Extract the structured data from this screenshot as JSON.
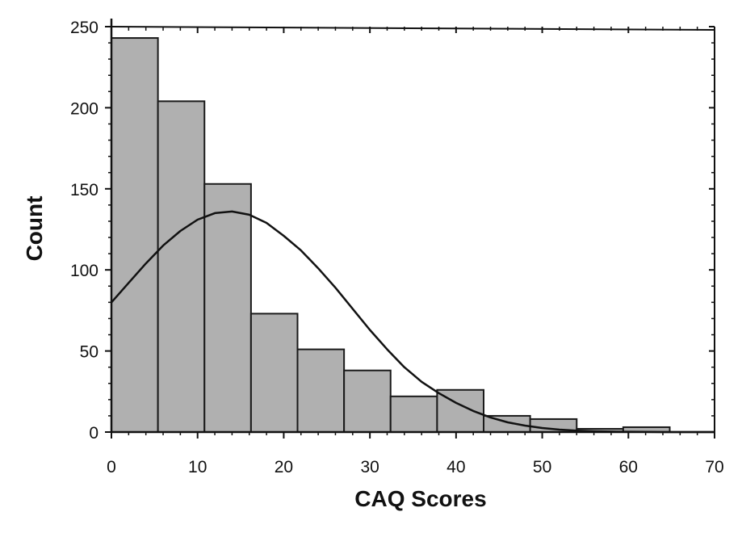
{
  "chart_data": {
    "type": "bar",
    "title": "",
    "xlabel": "CAQ Scores",
    "ylabel": "Count",
    "xlim": [
      0,
      70
    ],
    "ylim": [
      0,
      250
    ],
    "x_ticks": [
      0,
      10,
      20,
      30,
      40,
      50,
      60,
      70
    ],
    "y_ticks": [
      0,
      50,
      100,
      150,
      200,
      250
    ],
    "grid": false,
    "legend": "none",
    "bins": [
      {
        "start": 0,
        "end": 5.4,
        "count": 243
      },
      {
        "start": 5.4,
        "end": 10.8,
        "count": 204
      },
      {
        "start": 10.8,
        "end": 16.2,
        "count": 153
      },
      {
        "start": 16.2,
        "end": 21.6,
        "count": 73
      },
      {
        "start": 21.6,
        "end": 27,
        "count": 51
      },
      {
        "start": 27,
        "end": 32.4,
        "count": 38
      },
      {
        "start": 32.4,
        "end": 37.8,
        "count": 22
      },
      {
        "start": 37.8,
        "end": 43.2,
        "count": 26
      },
      {
        "start": 43.2,
        "end": 48.6,
        "count": 10
      },
      {
        "start": 48.6,
        "end": 54,
        "count": 8
      },
      {
        "start": 54,
        "end": 59.4,
        "count": 2
      },
      {
        "start": 59.4,
        "end": 64.8,
        "count": 3
      },
      {
        "start": 64.8,
        "end": 70.2,
        "count": 0
      }
    ],
    "normal_curve": {
      "x": [
        0,
        2,
        4,
        6,
        8,
        10,
        12,
        14,
        16,
        18,
        20,
        22,
        24,
        26,
        28,
        30,
        32,
        34,
        36,
        38,
        40,
        42,
        44,
        46,
        48,
        50,
        52,
        54,
        56,
        58,
        60,
        62,
        64,
        66,
        68,
        70
      ],
      "y": [
        80,
        92,
        104,
        115,
        124,
        131,
        135,
        136,
        134,
        129,
        121,
        112,
        101,
        89,
        76,
        63,
        51,
        40,
        31,
        24,
        18,
        13,
        9,
        6,
        4,
        2.5,
        1.5,
        0.9,
        0.5,
        0.3,
        0.2,
        0.1,
        0,
        0,
        0,
        0
      ]
    },
    "colors": {
      "bar_fill": "#b0b0b0",
      "bar_stroke": "#1a1a1a",
      "curve": "#111111",
      "axis": "#111111"
    }
  }
}
